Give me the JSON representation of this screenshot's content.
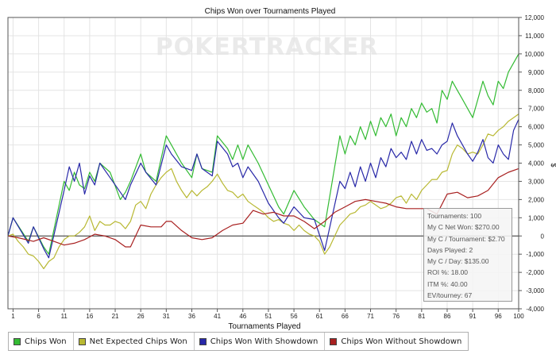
{
  "chart_data": {
    "type": "line",
    "title": "Chips Won over Tournaments Played",
    "xlabel": "Tournaments Played",
    "ylabel": "$",
    "xlim": [
      0,
      100
    ],
    "ylim": [
      -4000,
      12000
    ],
    "x_ticks": [
      "1",
      "6",
      "11",
      "16",
      "21",
      "26",
      "31",
      "36",
      "41",
      "46",
      "51",
      "56",
      "61",
      "66",
      "71",
      "76",
      "81",
      "86",
      "91",
      "96",
      "100"
    ],
    "y_ticks": [
      "-4,000",
      "-3,000",
      "-2,000",
      "-1,000",
      "0",
      "1,000",
      "2,000",
      "3,000",
      "4,000",
      "5,000",
      "6,000",
      "7,000",
      "8,000",
      "9,000",
      "10,000",
      "11,000",
      "12,000"
    ],
    "grid": true,
    "legend_position": "bottom",
    "watermark": "POKERTRACKER",
    "series": [
      {
        "name": "Chips Won",
        "color": "#33bb33",
        "x": [
          0,
          1,
          4,
          5,
          7,
          8,
          11,
          12,
          13,
          14,
          15,
          16,
          17,
          18,
          20,
          22,
          23,
          24,
          26,
          27,
          29,
          31,
          32,
          34,
          36,
          37,
          38,
          40,
          41,
          43,
          44,
          45,
          46,
          47,
          49,
          51,
          53,
          54,
          56,
          58,
          60,
          62,
          65,
          66,
          67,
          68,
          69,
          70,
          71,
          72,
          73,
          74,
          75,
          76,
          77,
          78,
          79,
          80,
          81,
          82,
          83,
          84,
          85,
          86,
          87,
          88,
          89,
          90,
          91,
          92,
          93,
          94,
          95,
          96,
          97,
          98,
          99,
          100
        ],
        "y": [
          0,
          1000,
          -300,
          500,
          -600,
          -1000,
          3000,
          2500,
          3500,
          2800,
          2600,
          3500,
          3000,
          4000,
          3500,
          2000,
          2400,
          3000,
          4500,
          3500,
          3000,
          5500,
          5000,
          4000,
          3200,
          4500,
          3700,
          3500,
          5500,
          4800,
          4200,
          5000,
          4200,
          5000,
          4000,
          2800,
          1600,
          1200,
          2500,
          1600,
          900,
          500,
          5500,
          4500,
          5500,
          5000,
          6000,
          5300,
          6300,
          5500,
          6500,
          6000,
          6700,
          5500,
          6500,
          6000,
          7000,
          6500,
          7300,
          6800,
          7000,
          6200,
          8000,
          7500,
          8500,
          8000,
          7500,
          7000,
          6500,
          7500,
          8500,
          7700,
          7200,
          8500,
          8100,
          9000,
          9500,
          10000
        ]
      },
      {
        "name": "Net Expected Chips Won",
        "color": "#b8b832",
        "x": [
          0,
          1,
          2,
          3,
          4,
          5,
          6,
          7,
          8,
          9,
          10,
          11,
          12,
          13,
          14,
          15,
          16,
          17,
          18,
          19,
          20,
          21,
          22,
          23,
          24,
          25,
          26,
          27,
          28,
          29,
          30,
          31,
          32,
          33,
          34,
          35,
          36,
          37,
          38,
          39,
          40,
          41,
          42,
          43,
          44,
          45,
          46,
          47,
          48,
          49,
          50,
          51,
          52,
          53,
          54,
          55,
          56,
          57,
          58,
          59,
          60,
          61,
          62,
          63,
          64,
          65,
          66,
          67,
          68,
          69,
          70,
          71,
          72,
          73,
          74,
          75,
          76,
          77,
          78,
          79,
          80,
          81,
          82,
          83,
          84,
          85,
          86,
          87,
          88,
          89,
          90,
          91,
          92,
          93,
          94,
          95,
          96,
          97,
          98,
          99,
          100
        ],
        "y": [
          0,
          100,
          -300,
          -600,
          -1000,
          -1100,
          -1400,
          -1800,
          -1400,
          -1200,
          -600,
          -200,
          0,
          0,
          200,
          500,
          1100,
          300,
          800,
          600,
          600,
          800,
          700,
          400,
          800,
          1700,
          1900,
          1500,
          2300,
          2800,
          3200,
          3500,
          3700,
          3000,
          2500,
          2100,
          2500,
          2200,
          2500,
          2700,
          3000,
          3400,
          2900,
          2500,
          2400,
          2100,
          2300,
          1900,
          1700,
          1500,
          1300,
          1000,
          800,
          900,
          700,
          600,
          300,
          600,
          300,
          100,
          0,
          -300,
          -1000,
          -600,
          0,
          600,
          900,
          1200,
          1300,
          1600,
          1700,
          1900,
          1700,
          1500,
          1600,
          1800,
          2100,
          2200,
          1800,
          2300,
          2000,
          2500,
          2800,
          3100,
          3100,
          3500,
          3600,
          4500,
          5000,
          4800,
          4500,
          4600,
          4500,
          5000,
          5600,
          5500,
          5800,
          6000,
          6300,
          6500,
          6700
        ]
      },
      {
        "name": "Chips Won With Showdown",
        "color": "#2828a8",
        "x": [
          0,
          1,
          4,
          5,
          7,
          8,
          11,
          12,
          13,
          14,
          15,
          16,
          17,
          18,
          20,
          22,
          23,
          24,
          26,
          27,
          29,
          31,
          32,
          34,
          36,
          37,
          38,
          40,
          41,
          43,
          44,
          45,
          46,
          47,
          49,
          51,
          53,
          54,
          56,
          58,
          60,
          62,
          65,
          66,
          67,
          68,
          69,
          70,
          71,
          72,
          73,
          74,
          75,
          76,
          77,
          78,
          79,
          80,
          81,
          82,
          83,
          84,
          85,
          86,
          87,
          88,
          89,
          90,
          91,
          92,
          93,
          94,
          95,
          96,
          97,
          98,
          99,
          100
        ],
        "y": [
          0,
          1000,
          -400,
          500,
          -700,
          -1200,
          2500,
          3800,
          3000,
          4000,
          2300,
          3300,
          2800,
          4000,
          3200,
          2400,
          2000,
          2800,
          4000,
          3500,
          2800,
          5000,
          4500,
          3800,
          3600,
          4500,
          3700,
          3300,
          5200,
          4500,
          3800,
          4000,
          3200,
          3800,
          3000,
          1800,
          1000,
          700,
          1600,
          1000,
          900,
          -800,
          3000,
          2600,
          3500,
          2700,
          3800,
          3000,
          4000,
          3200,
          4300,
          3800,
          4800,
          4300,
          4600,
          4200,
          5200,
          4500,
          5300,
          4700,
          4800,
          4500,
          5000,
          5200,
          6200,
          5500,
          5000,
          4500,
          4100,
          4600,
          5300,
          4300,
          4000,
          5000,
          4500,
          4200,
          5800,
          6400
        ]
      },
      {
        "name": "Chips Won Without Showdown",
        "color": "#a82020",
        "x": [
          0,
          2,
          5,
          7,
          9,
          11,
          13,
          15,
          17,
          19,
          21,
          23,
          24,
          26,
          28,
          30,
          31,
          32,
          34,
          36,
          38,
          40,
          42,
          44,
          46,
          48,
          50,
          52,
          54,
          56,
          58,
          60,
          62,
          64,
          66,
          68,
          70,
          72,
          74,
          76,
          78,
          80,
          82,
          84,
          86,
          88,
          90,
          92,
          94,
          96,
          98,
          100
        ],
        "y": [
          0,
          -100,
          -300,
          -100,
          -300,
          -500,
          -400,
          -200,
          100,
          0,
          -200,
          -600,
          -600,
          600,
          500,
          500,
          800,
          800,
          300,
          -100,
          -200,
          -100,
          300,
          600,
          700,
          1400,
          1200,
          1300,
          1100,
          1100,
          800,
          400,
          800,
          1300,
          1600,
          1900,
          2000,
          1900,
          1800,
          1600,
          1500,
          1500,
          1500,
          1200,
          2300,
          2400,
          2100,
          2200,
          2500,
          3200,
          3500,
          3700
        ]
      }
    ],
    "stats": [
      "Tournaments: 100",
      "My C Net Won: $270.00",
      "My C / Tournament: $2.70",
      "Days Played: 2",
      "My C / Day: $135.00",
      "ROI %: 18.00",
      "ITM %: 40.00",
      "EV/tourney: 67"
    ]
  }
}
